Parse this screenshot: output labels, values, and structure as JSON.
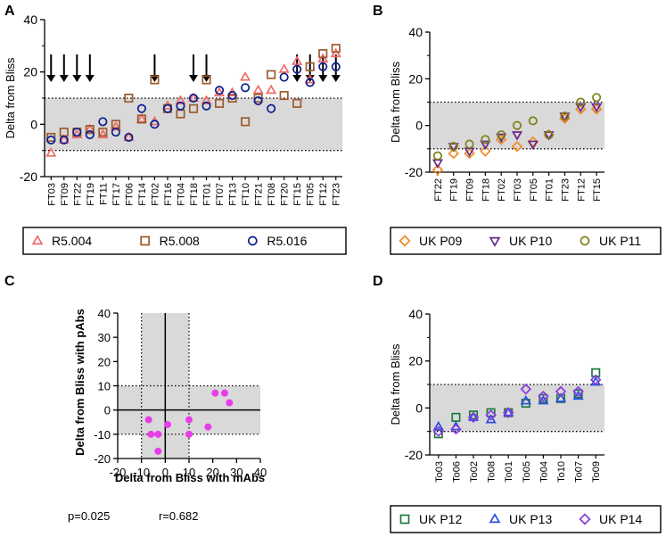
{
  "colors": {
    "shade": "#d9d9d9",
    "R5.004": "#f06b6b",
    "R5.008": "#9c5a2c",
    "R5.016": "#0a1e8c",
    "UK P09": "#f08a24",
    "UK P10": "#6a2a8a",
    "UK P11": "#7f7f16",
    "UK P12": "#1e7a3c",
    "UK P13": "#2a4fe0",
    "UK P14": "#8a3adf",
    "corr": "#e83ce8"
  },
  "panels": {
    "A": {
      "label": "A",
      "ylabel": "Delta from Bliss",
      "ylim": [
        -20,
        40
      ],
      "yticks": [
        "-20",
        "0",
        "20",
        "40"
      ],
      "band": [
        -10,
        10
      ]
    },
    "B": {
      "label": "B",
      "ylabel": "Delta from Bliss",
      "ylim": [
        -20,
        40
      ],
      "yticks": [
        "-20",
        "0",
        "20",
        "40"
      ],
      "band": [
        -10,
        10
      ]
    },
    "C": {
      "label": "C",
      "xlabel": "Delta from Bliss with mAbs",
      "ylabel": "Delta from Bliss with pAbs",
      "xlim": [
        -20,
        40
      ],
      "ylim": [
        -20,
        40
      ],
      "xticks": [
        "-20",
        "-10",
        "0",
        "10",
        "20",
        "30",
        "40"
      ],
      "yticks": [
        "-20",
        "-10",
        "0",
        "10",
        "20",
        "30",
        "40"
      ],
      "p_text": "p=0.025",
      "r_text": "r=0.682"
    },
    "D": {
      "label": "D",
      "ylabel": "Delta from Bliss",
      "ylim": [
        -20,
        40
      ],
      "yticks": [
        "-20",
        "0",
        "20",
        "40"
      ],
      "band": [
        -10,
        10
      ]
    }
  },
  "chart_data": [
    {
      "panel": "A",
      "type": "scatter",
      "categories": [
        "FT03",
        "FT09",
        "FT22",
        "FT19",
        "FT11",
        "FT17",
        "FT06",
        "FT14",
        "FT02",
        "FT16",
        "FT04",
        "FT18",
        "FT01",
        "FT07",
        "FT13",
        "FT10",
        "FT21",
        "FT08",
        "FT20",
        "FT15",
        "FT05",
        "FT12",
        "FT23"
      ],
      "arrows_at": [
        "FT03",
        "FT09",
        "FT22",
        "FT19",
        "FT02",
        "FT18",
        "FT01",
        "FT15",
        "FT05",
        "FT12",
        "FT23"
      ],
      "series": [
        {
          "name": "R5.004",
          "marker": "triangle",
          "values": [
            -11,
            -6,
            -4,
            -2,
            -4,
            -1,
            -5,
            2,
            1,
            7,
            9,
            10,
            9,
            12,
            12,
            18,
            13,
            13,
            21,
            24,
            17,
            25,
            27
          ]
        },
        {
          "name": "R5.008",
          "marker": "square",
          "values": [
            -5,
            -3,
            -3,
            -2,
            -3,
            0,
            10,
            2,
            17,
            6,
            4,
            6,
            17,
            8,
            10,
            1,
            10,
            19,
            11,
            8,
            22,
            27,
            29
          ]
        },
        {
          "name": "R5.016",
          "marker": "circle",
          "values": [
            -6,
            -6,
            -3,
            -4,
            1,
            -3,
            -5,
            6,
            0,
            6,
            7,
            10,
            7,
            13,
            11,
            14,
            9,
            6,
            18,
            21,
            16,
            22,
            22
          ]
        }
      ],
      "legend": [
        "R5.004",
        "R5.008",
        "R5.016"
      ]
    },
    {
      "panel": "B",
      "type": "scatter",
      "categories": [
        "FT22",
        "FT19",
        "FT09",
        "FT18",
        "FT02",
        "FT03",
        "FT05",
        "FT01",
        "FT23",
        "FT12",
        "FT15"
      ],
      "series": [
        {
          "name": "UK P09",
          "marker": "diamond",
          "values": [
            -19,
            -12,
            -12,
            -11,
            -6,
            -9,
            -7,
            -4,
            3,
            7,
            7
          ]
        },
        {
          "name": "UK P10",
          "marker": "triangle-down",
          "values": [
            -16,
            -9,
            -11,
            -8,
            -5,
            -4,
            -8,
            -4,
            4,
            8,
            8
          ]
        },
        {
          "name": "UK P11",
          "marker": "circle",
          "values": [
            -13,
            -9,
            -8,
            -6,
            -4,
            0,
            2,
            -4,
            4,
            10,
            12
          ]
        }
      ],
      "legend": [
        "UK P09",
        "UK P10",
        "UK P11"
      ]
    },
    {
      "panel": "C",
      "type": "scatter",
      "points": [
        [
          -7,
          -4
        ],
        [
          -6,
          -10
        ],
        [
          -3,
          -10
        ],
        [
          -3,
          -17
        ],
        [
          1,
          -6
        ],
        [
          10,
          -4
        ],
        [
          10,
          -10
        ],
        [
          18,
          -7
        ],
        [
          21,
          7
        ],
        [
          25,
          7
        ],
        [
          27,
          3
        ]
      ]
    },
    {
      "panel": "D",
      "type": "scatter",
      "categories": [
        "To03",
        "To06",
        "To02",
        "To08",
        "To01",
        "To05",
        "To04",
        "To10",
        "To07",
        "To09"
      ],
      "series": [
        {
          "name": "UK P12",
          "marker": "square",
          "values": [
            -11,
            -4,
            -3,
            -2,
            -2,
            2,
            4,
            4,
            6,
            15
          ]
        },
        {
          "name": "UK P13",
          "marker": "triangle",
          "values": [
            -8,
            -8,
            -4,
            -5,
            -2,
            3,
            3,
            4,
            5,
            11
          ]
        },
        {
          "name": "UK P14",
          "marker": "diamond",
          "values": [
            -10,
            -9,
            -4,
            -3,
            -2,
            8,
            5,
            7,
            7,
            12
          ]
        }
      ],
      "legend": [
        "UK P12",
        "UK P13",
        "UK P14"
      ]
    }
  ]
}
